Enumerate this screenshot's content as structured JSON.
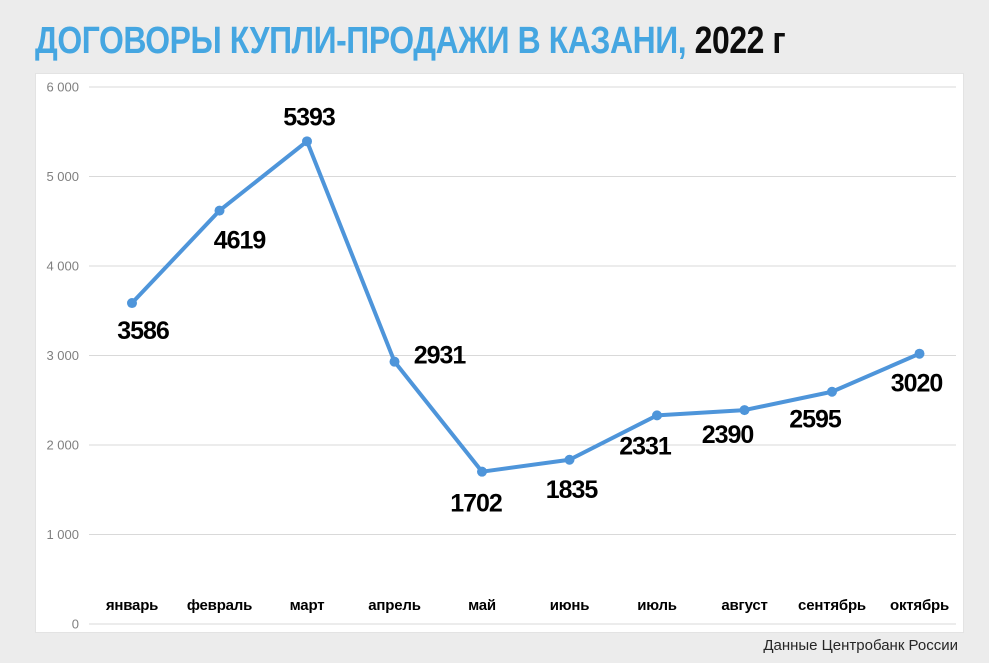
{
  "title": {
    "main": "ДОГОВОРЫ КУПЛИ-ПРОДАЖИ В КАЗАНИ,",
    "year": " 2022 г"
  },
  "source": "Данные Центробанк России",
  "colors": {
    "title_accent": "#45a6e1",
    "page_background": "#ececec",
    "panel_background": "#ffffff",
    "gridline": "#d9d9d9",
    "axis_label": "#7f7f7f",
    "line": "#4e95da",
    "data_label": "#000000"
  },
  "chart_data": {
    "type": "line",
    "title": "ДОГОВОРЫ КУПЛИ-ПРОДАЖИ В КАЗАНИ, 2022 г",
    "categories": [
      "январь",
      "февраль",
      "март",
      "апрель",
      "май",
      "июнь",
      "июль",
      "август",
      "сентябрь",
      "октябрь"
    ],
    "values": [
      3586,
      4619,
      5393,
      2931,
      1702,
      1835,
      2331,
      2390,
      2595,
      3020
    ],
    "data_labels": [
      "3586",
      "4619",
      "5393",
      "2931",
      "1702",
      "1835",
      "2331",
      "2390",
      "2595",
      "3020"
    ],
    "xlabel": "",
    "ylabel": "",
    "ylim": [
      0,
      6000
    ],
    "ytick_step": 1000,
    "ytick_labels": [
      "0",
      "1 000",
      "2 000",
      "3 000",
      "4 000",
      "5 000",
      "6 000"
    ],
    "grid": true,
    "legend": false,
    "marker": "circle",
    "line_color": "#4e95da"
  }
}
